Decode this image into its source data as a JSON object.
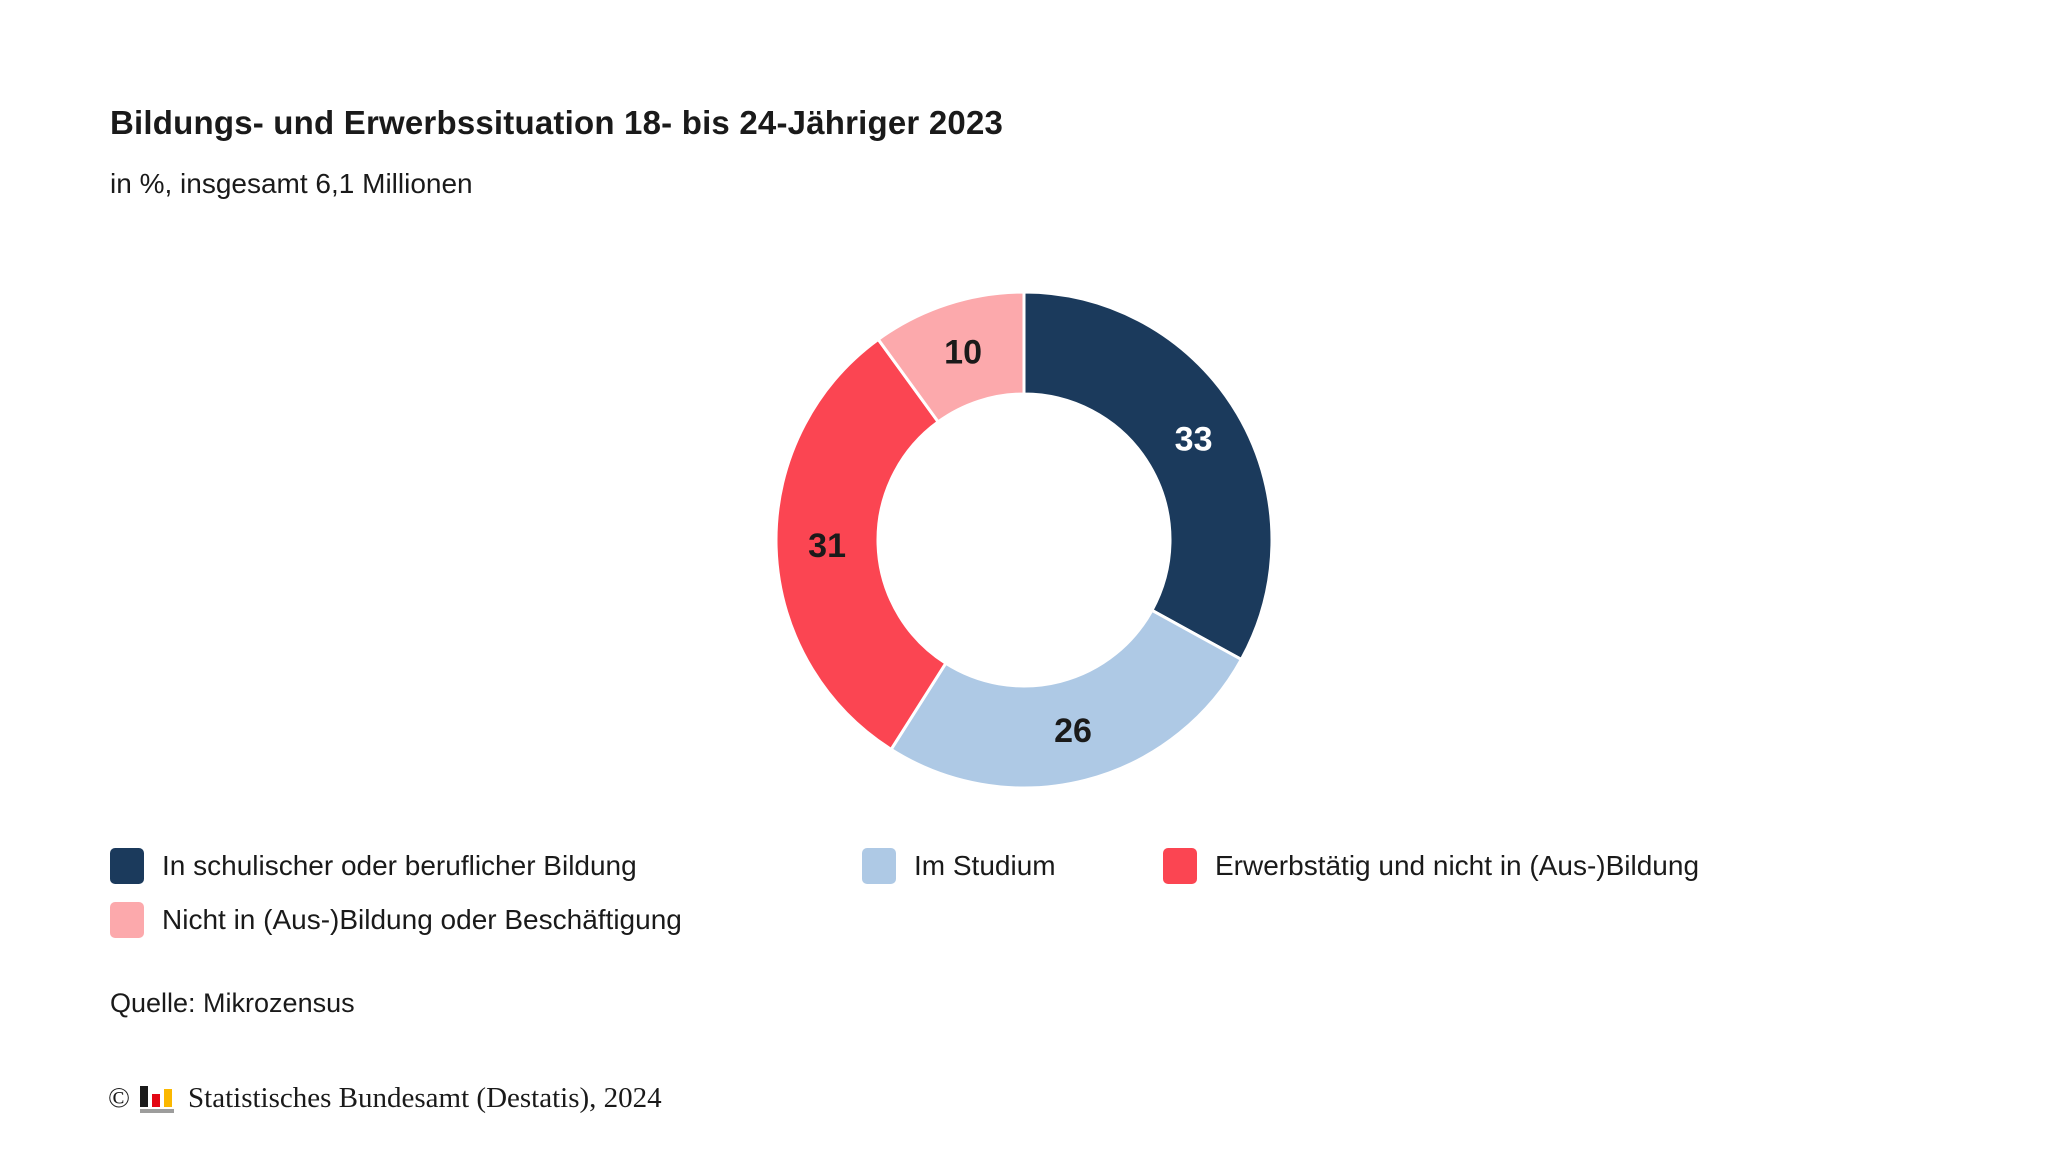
{
  "header": {
    "title": "Bildungs- und Erwerbssituation 18- bis 24-Jähriger 2023",
    "subtitle": "in %, insgesamt 6,1 Millionen"
  },
  "chart_data": {
    "type": "pie",
    "variant": "donut",
    "title": "Bildungs- und Erwerbssituation 18- bis 24-Jähriger 2023",
    "subtitle": "in %, insgesamt 6,1 Millionen",
    "unit": "%",
    "total": 100,
    "total_label": "insgesamt 6,1 Millionen",
    "start_angle_deg": 0,
    "direction": "clockwise",
    "inner_radius_ratio": 0.59,
    "legend_position": "bottom",
    "categories": [
      "In schulischer oder beruflicher Bildung",
      "Im Studium",
      "Erwerbstätig und nicht in (Aus-)Bildung",
      "Nicht in (Aus-)Bildung oder Beschäftigung"
    ],
    "values": [
      33,
      26,
      31,
      10
    ],
    "segments": [
      {
        "label": "In schulischer oder beruflicher Bildung",
        "value": 33,
        "color": "#1b3a5c",
        "label_color": "#ffffff"
      },
      {
        "label": "Im Studium",
        "value": 26,
        "color": "#aec9e5",
        "label_color": "#1a1a1a"
      },
      {
        "label": "Erwerbstätig und nicht in (Aus-)Bildung",
        "value": 31,
        "color": "#fb4552",
        "label_color": "#1a1a1a"
      },
      {
        "label": "Nicht in (Aus-)Bildung oder Beschäftigung",
        "value": 10,
        "color": "#fca9ac",
        "label_color": "#1a1a1a"
      }
    ],
    "separator_color": "#ffffff"
  },
  "source": {
    "label": "Quelle: Mikrozensus"
  },
  "footer": {
    "copyright": "©",
    "text": "Statistisches Bundesamt (Destatis), 2024",
    "logo": {
      "name": "destatis-bar-logo",
      "bar_black": "#1a1a1a",
      "bar_red": "#e30613",
      "bar_gold": "#fbb800",
      "baseline_gray": "#9d9d9c"
    }
  }
}
